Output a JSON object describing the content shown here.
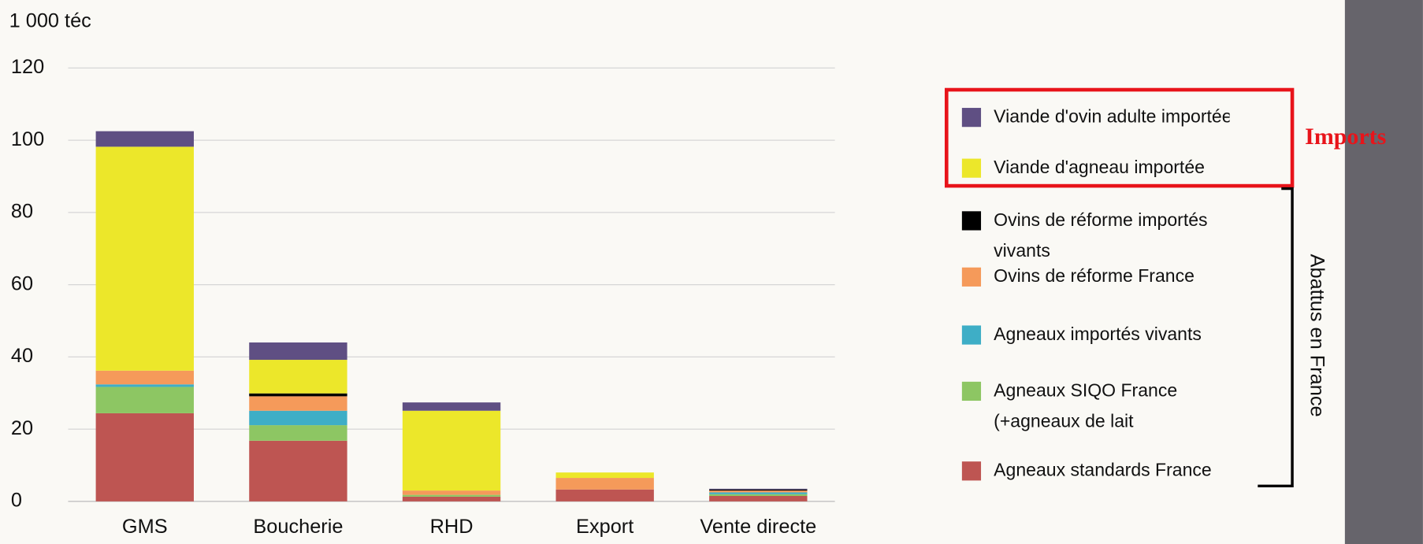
{
  "chart_data": {
    "type": "stacked_bar",
    "y_unit": "1 000 téc",
    "categories": [
      "GMS",
      "Boucherie",
      "RHD",
      "Export",
      "Vente directe"
    ],
    "series": [
      {
        "name": "Agneaux standards France",
        "color": "#be5552",
        "values": [
          24.4,
          16.8,
          1.3,
          3.3,
          1.5
        ]
      },
      {
        "name": "Agneaux SIQO France (+agneaux de lait",
        "color": "#8dc663",
        "values": [
          7.3,
          4.3,
          0.5,
          0,
          0.5
        ]
      },
      {
        "name": "Agneaux importés vivants",
        "color": "#3eaec6",
        "values": [
          0.7,
          4,
          0,
          0,
          0.5
        ]
      },
      {
        "name": "Ovins de réforme France",
        "color": "#f59a5a",
        "values": [
          3.8,
          4,
          1.2,
          3.2,
          0.5
        ]
      },
      {
        "name": "Ovins de réforme importés vivants",
        "color": "#000000",
        "values": [
          0,
          0.8,
          0,
          0,
          0.3
        ]
      },
      {
        "name": "Viande d'agneau importée",
        "color": "#ece72a",
        "values": [
          62,
          9.3,
          22.1,
          1.5,
          0
        ]
      },
      {
        "name": "Viande d'ovin adulte importée",
        "color": "#5f4f83",
        "values": [
          4.3,
          4.8,
          2.3,
          0,
          0.2
        ]
      }
    ],
    "ylim": [
      0,
      120
    ],
    "yticks": [
      0,
      20,
      40,
      60,
      80,
      100,
      120
    ],
    "grid": true,
    "annotations": {
      "imports": "Imports",
      "abattus": "Abattus en France"
    }
  }
}
